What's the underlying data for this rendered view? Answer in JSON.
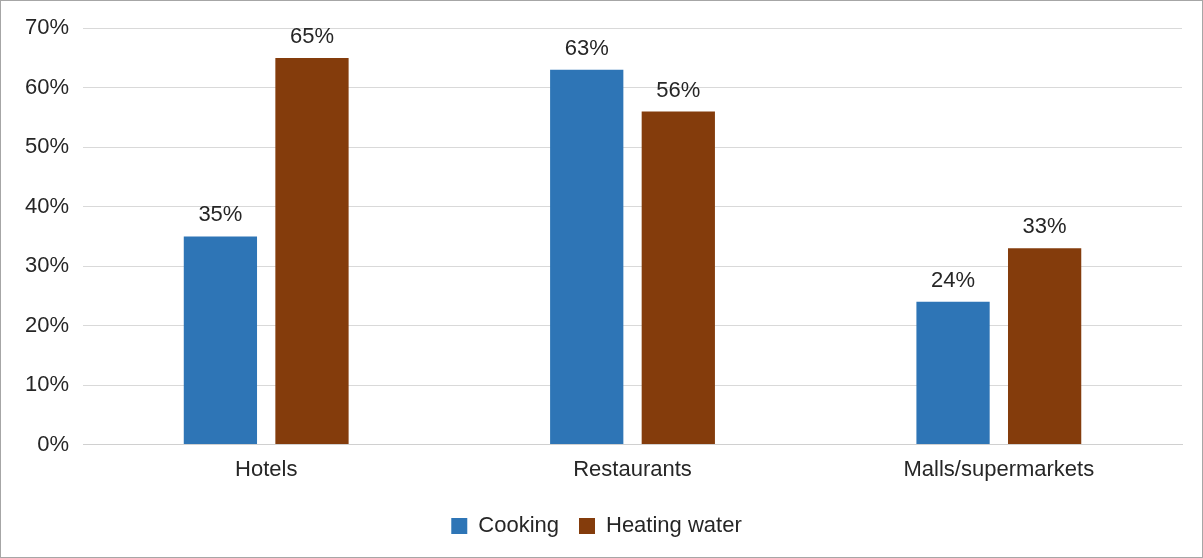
{
  "chart_data": {
    "type": "bar",
    "categories": [
      "Hotels",
      "Restaurants",
      "Malls/supermarkets"
    ],
    "series": [
      {
        "name": "Cooking",
        "color": "#2e75b6",
        "values": [
          35,
          63,
          24
        ],
        "value_labels": [
          "35%",
          "63%",
          "24%"
        ]
      },
      {
        "name": "Heating water",
        "color": "#843c0c",
        "values": [
          65,
          56,
          33
        ],
        "value_labels": [
          "65%",
          "56%",
          "33%"
        ]
      }
    ],
    "ylim": [
      0,
      70
    ],
    "yticks": [
      {
        "value": 0,
        "label": "0%"
      },
      {
        "value": 10,
        "label": "10%"
      },
      {
        "value": 20,
        "label": "20%"
      },
      {
        "value": 30,
        "label": "30%"
      },
      {
        "value": 40,
        "label": "40%"
      },
      {
        "value": 50,
        "label": "50%"
      },
      {
        "value": 60,
        "label": "60%"
      },
      {
        "value": 70,
        "label": "70%"
      }
    ],
    "grid": "y",
    "legend": "bottom"
  }
}
